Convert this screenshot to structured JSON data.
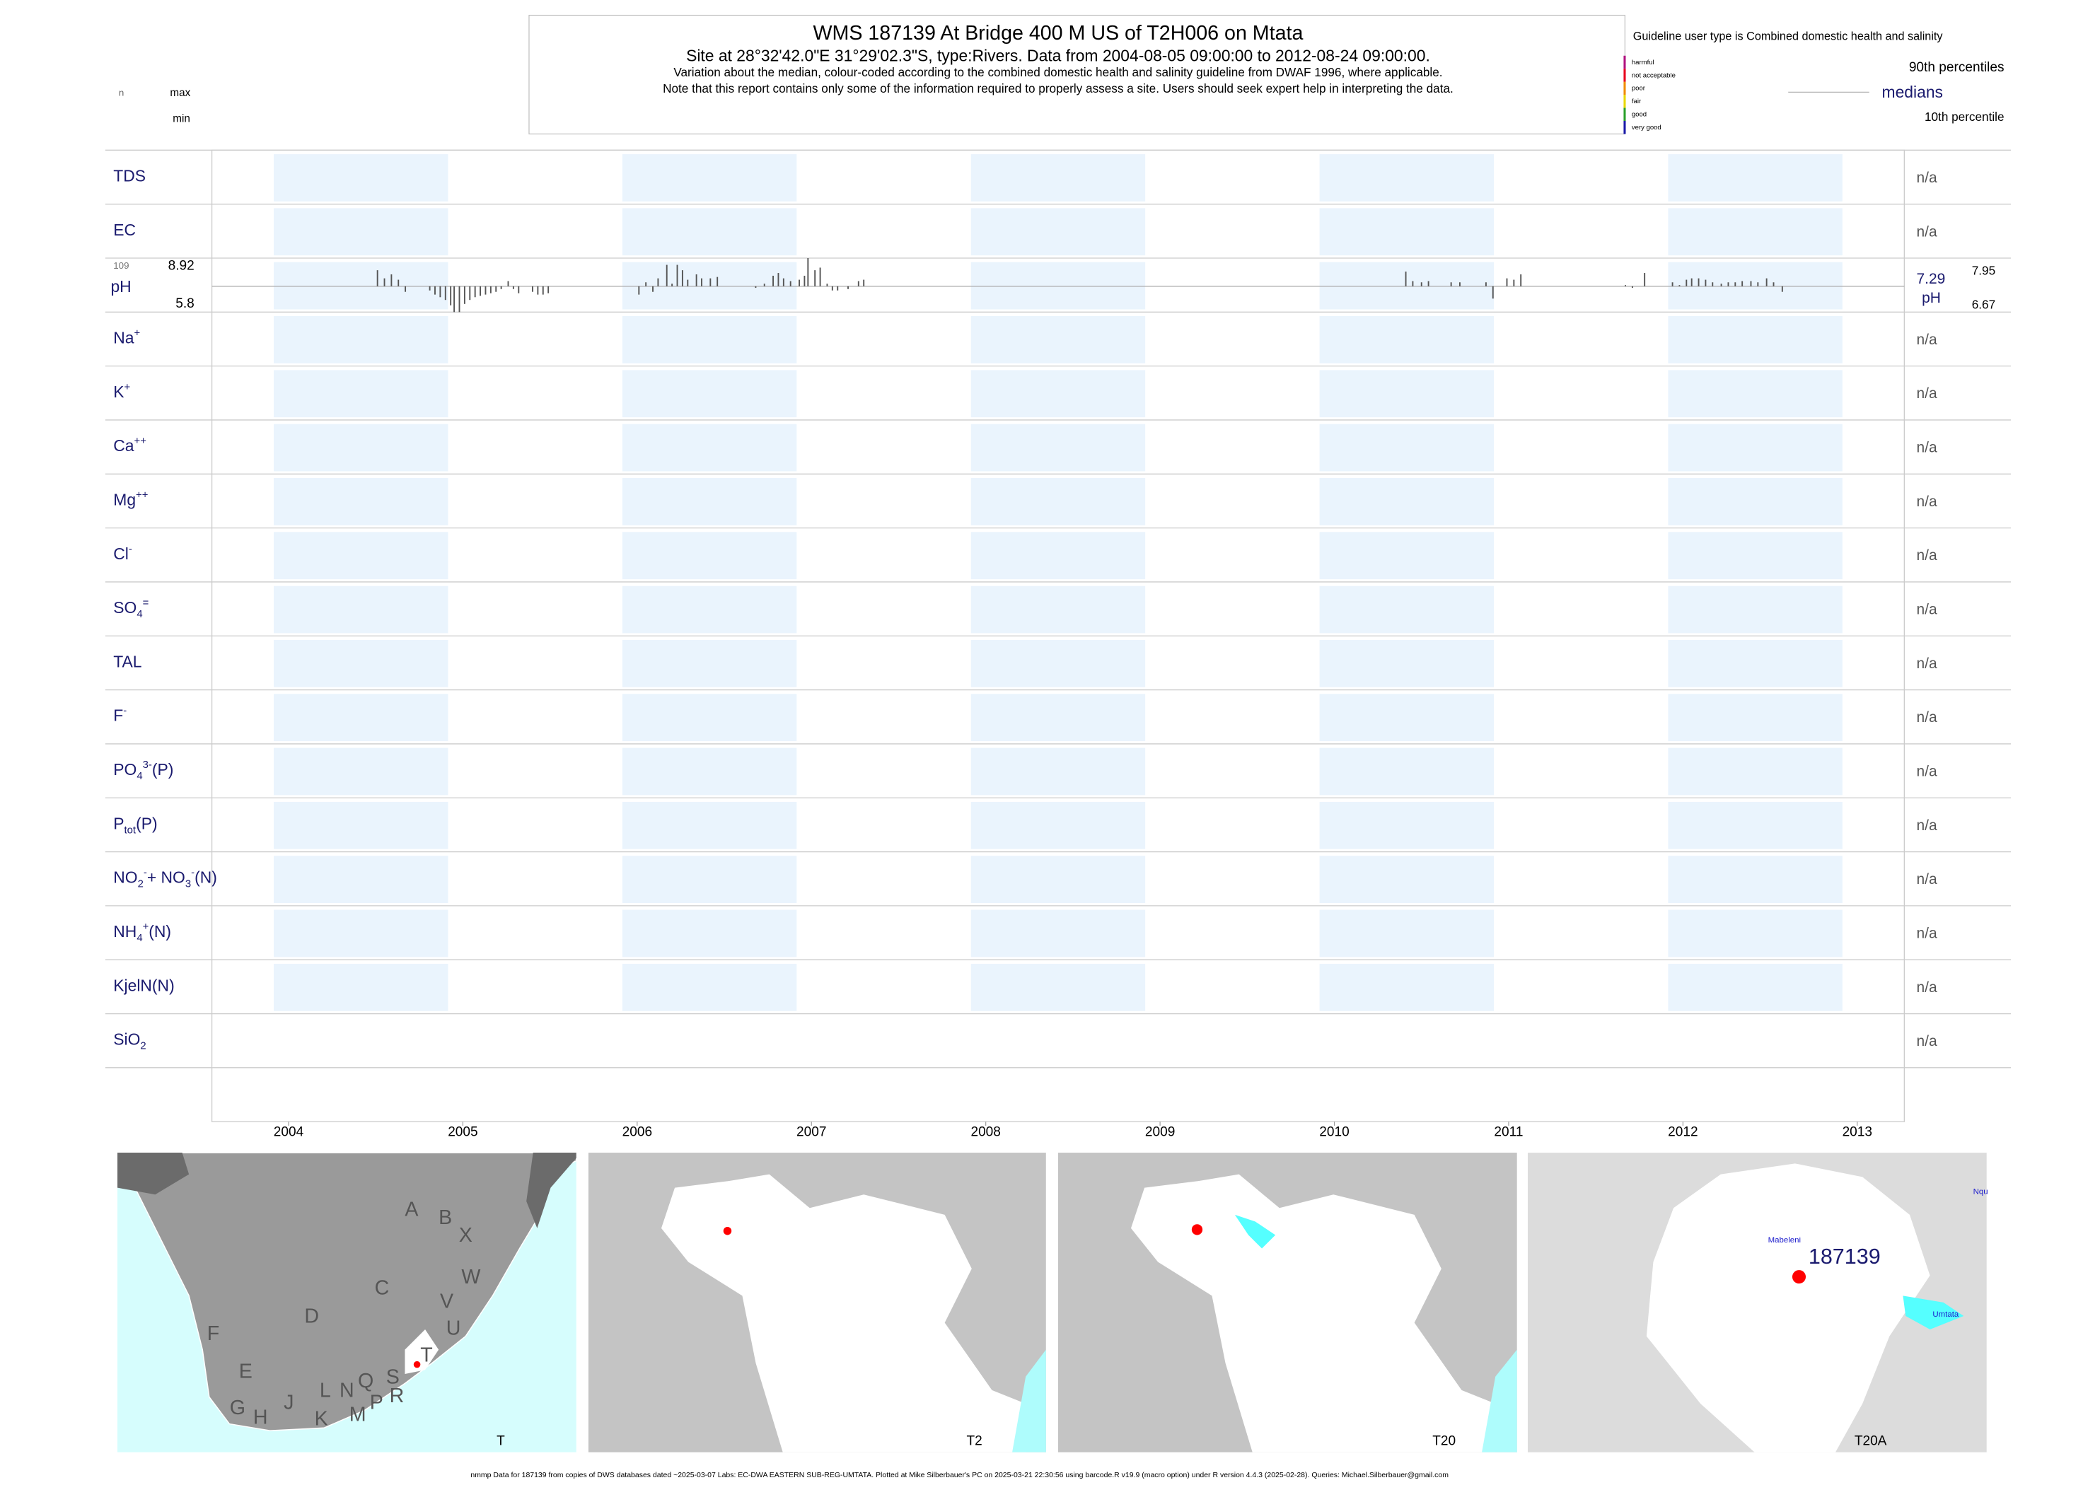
{
  "header": {
    "title": "WMS 187139  At Bridge 400 M US of T2H006 on Mtata",
    "subtitle": "Site at 28°32'42.0\"E 31°29'02.3\"S, type:Rivers.  Data from 2004-08-05 09:00:00 to 2012-08-24 09:00:00.",
    "lines": [
      "Variation about the median,  colour-coded according to the combined domestic health and salinity guideline from DWAF 1996, where applicable.",
      "Note that this report contains only some of the information required to properly assess a site. Users should seek expert help in interpreting the data."
    ]
  },
  "legend": {
    "guideline": "Guideline user type is Combined domestic health and salinity",
    "classes": [
      {
        "label": "harmful",
        "color": "#b0127f"
      },
      {
        "label": "not acceptable",
        "color": "#e8001c"
      },
      {
        "label": "poor",
        "color": "#f08c00"
      },
      {
        "label": "fair",
        "color": "#e8d800"
      },
      {
        "label": "good",
        "color": "#2aa02a"
      },
      {
        "label": "very good",
        "color": "#1a1aa8"
      }
    ],
    "p90": "90th percentiles",
    "median": "medians",
    "p10": "10th percentile",
    "n": "n",
    "max": "max",
    "min": "min"
  },
  "axis": {
    "xlim": [
      2003.56,
      2013.27
    ],
    "xticks": [
      2004,
      2005,
      2006,
      2007,
      2008,
      2009,
      2010,
      2011,
      2012,
      2013
    ]
  },
  "rows": [
    {
      "label": [
        {
          "text": "TDS"
        }
      ],
      "status": "n/a"
    },
    {
      "label": [
        {
          "text": "EC"
        }
      ],
      "status": "n/a"
    },
    {
      "label": [
        {
          "text": "pH"
        }
      ],
      "stats": {
        "n": 109,
        "max": 8.92,
        "min": 5.8,
        "median": 7.29,
        "p90": 7.95,
        "p10": 6.67,
        "unit": "pH"
      },
      "samples": {
        "x": [
          2004.51,
          2004.55,
          2004.59,
          2004.63,
          2004.67,
          2004.81,
          2004.84,
          2004.87,
          2004.9,
          2004.93,
          2004.95,
          2004.98,
          2005.01,
          2005.04,
          2005.07,
          2005.1,
          2005.13,
          2005.16,
          2005.19,
          2005.22,
          2005.26,
          2005.29,
          2005.32,
          2005.4,
          2005.43,
          2005.46,
          2005.49,
          2006.01,
          2006.05,
          2006.09,
          2006.12,
          2006.17,
          2006.2,
          2006.23,
          2006.26,
          2006.29,
          2006.34,
          2006.37,
          2006.42,
          2006.46,
          2006.68,
          2006.73,
          2006.78,
          2006.81,
          2006.84,
          2006.88,
          2006.93,
          2006.96,
          2006.98,
          2007.02,
          2007.05,
          2007.09,
          2007.12,
          2007.15,
          2007.21,
          2007.27,
          2007.3,
          2010.41,
          2010.45,
          2010.5,
          2010.54,
          2010.67,
          2010.72,
          2010.87,
          2010.91,
          2010.99,
          2011.03,
          2011.07,
          2011.67,
          2011.71,
          2011.78,
          2011.94,
          2011.98,
          2012.02,
          2012.05,
          2012.09,
          2012.13,
          2012.17,
          2012.22,
          2012.26,
          2012.3,
          2012.34,
          2012.39,
          2012.43,
          2012.48,
          2012.52,
          2012.57
        ],
        "values": [
          8.22,
          7.75,
          7.98,
          7.67,
          6.97,
          7.05,
          6.81,
          6.66,
          6.5,
          6.19,
          5.8,
          5.8,
          6.27,
          6.5,
          6.66,
          6.74,
          6.81,
          6.89,
          6.97,
          7.13,
          7.59,
          7.13,
          6.89,
          6.97,
          6.81,
          6.81,
          6.89,
          6.81,
          7.52,
          6.97,
          7.75,
          8.53,
          7.44,
          8.53,
          8.22,
          7.67,
          7.98,
          7.75,
          7.75,
          7.83,
          7.2,
          7.44,
          7.9,
          8.06,
          7.75,
          7.59,
          7.67,
          7.9,
          8.92,
          8.22,
          8.37,
          7.44,
          7.05,
          7.05,
          7.13,
          7.59,
          7.67,
          8.14,
          7.59,
          7.52,
          7.59,
          7.52,
          7.52,
          7.52,
          6.58,
          7.75,
          7.67,
          7.98,
          7.36,
          7.2,
          8.06,
          7.52,
          7.36,
          7.67,
          7.75,
          7.75,
          7.67,
          7.52,
          7.44,
          7.52,
          7.52,
          7.59,
          7.59,
          7.52,
          7.75,
          7.52,
          6.97
        ]
      }
    },
    {
      "label": [
        {
          "text": "Na"
        },
        {
          "sup": "+"
        }
      ],
      "status": "n/a"
    },
    {
      "label": [
        {
          "text": "K"
        },
        {
          "sup": "+"
        }
      ],
      "status": "n/a"
    },
    {
      "label": [
        {
          "text": "Ca"
        },
        {
          "sup": "++"
        }
      ],
      "status": "n/a"
    },
    {
      "label": [
        {
          "text": "Mg"
        },
        {
          "sup": "++"
        }
      ],
      "status": "n/a"
    },
    {
      "label": [
        {
          "text": "Cl"
        },
        {
          "sup": "-"
        }
      ],
      "status": "n/a"
    },
    {
      "label": [
        {
          "text": "SO"
        },
        {
          "sub": "4"
        },
        {
          "sup": "="
        }
      ],
      "status": "n/a"
    },
    {
      "label": [
        {
          "text": "TAL"
        }
      ],
      "status": "n/a"
    },
    {
      "label": [
        {
          "text": "F"
        },
        {
          "sup": "-"
        }
      ],
      "status": "n/a"
    },
    {
      "label": [
        {
          "text": "PO"
        },
        {
          "sub": "4"
        },
        {
          "sup": "3-"
        },
        {
          "text": "(P)"
        }
      ],
      "status": "n/a"
    },
    {
      "label": [
        {
          "text": "P"
        },
        {
          "sub": "tot"
        },
        {
          "text": "(P)"
        }
      ],
      "status": "n/a"
    },
    {
      "label": [
        {
          "text": "NO"
        },
        {
          "sub": "2"
        },
        {
          "sup": "-"
        },
        {
          "text": "+ NO"
        },
        {
          "sub": "3"
        },
        {
          "sup": "-"
        },
        {
          "text": "(N)"
        }
      ],
      "status": "n/a"
    },
    {
      "label": [
        {
          "text": "NH"
        },
        {
          "sub": "4"
        },
        {
          "sup": "+"
        },
        {
          "text": "(N)"
        }
      ],
      "status": "n/a"
    },
    {
      "label": [
        {
          "text": "KjelN(N)"
        }
      ],
      "status": "n/a"
    },
    {
      "label": [
        {
          "text": "SiO"
        },
        {
          "sub": "2"
        }
      ],
      "status": "n/a"
    }
  ],
  "maps": [
    {
      "label": "T",
      "regions": [
        "A",
        "B",
        "X",
        "C",
        "W",
        "D",
        "V",
        "U",
        "F",
        "T",
        "E",
        "S",
        "R",
        "Q",
        "N",
        "L",
        "P",
        "M",
        "K",
        "J",
        "H",
        "G"
      ]
    },
    {
      "label": "T2"
    },
    {
      "label": "T20"
    },
    {
      "label": "T20A",
      "site": "187139",
      "places": [
        "Mabeleni",
        "Umtata",
        "Nqu"
      ]
    }
  ],
  "footer": "nmmp Data for 187139 from copies of DWS databases dated ~2025-03-07 Labs: EC-DWA EASTERN SUB-REG-UMTATA. Plotted at Mike Silberbauer's PC on 2025-03-21 22:30:56 using barcode.R v19.9 (macro option) under R version 4.4.3 (2025-02-28). Queries: Michael.Silberbauer@gmail.com"
}
